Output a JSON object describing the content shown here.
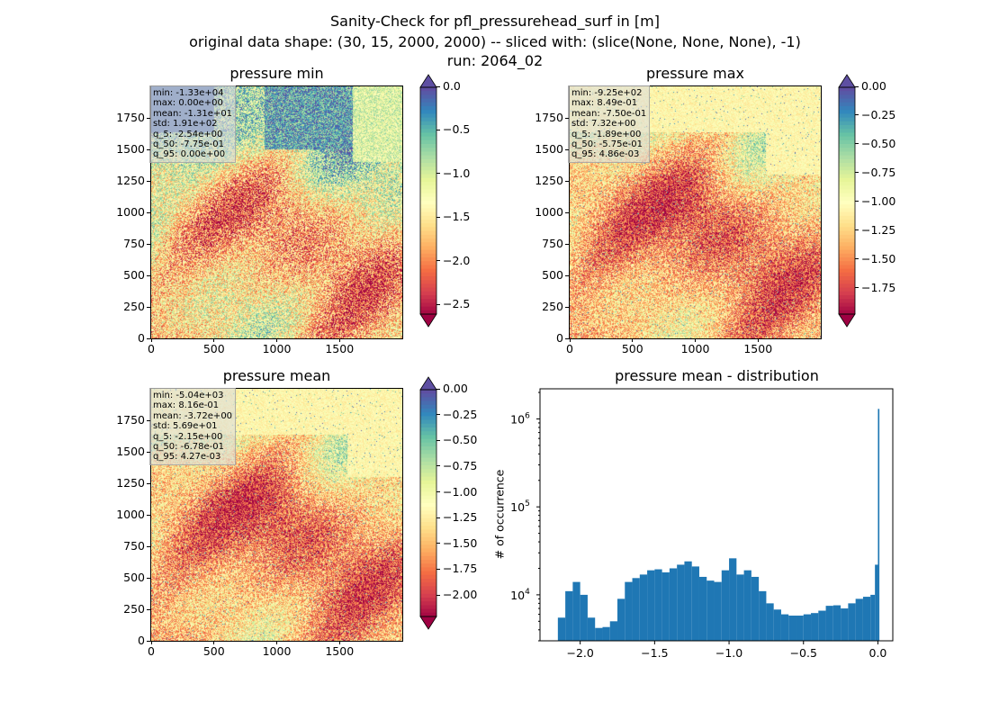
{
  "suptitle": {
    "line1": "Sanity-Check for pfl_pressurehead_surf in [m]",
    "line2": "original data shape: (30, 15, 2000, 2000) -- sliced with: (slice(None, None, None), -1)",
    "line3": "run: 2064_02"
  },
  "chart_data": [
    {
      "type": "heatmap",
      "title": "pressure min",
      "colormap": "Spectral",
      "extend": "both",
      "xticks": [
        "0",
        "500",
        "1000",
        "1500"
      ],
      "yticks": [
        "0",
        "250",
        "500",
        "750",
        "1000",
        "1250",
        "1500",
        "1750"
      ],
      "xlim": [
        0,
        2000
      ],
      "ylim": [
        0,
        2000
      ],
      "colorbar_ticks": [
        "0.0",
        "−0.5",
        "−1.0",
        "−1.5",
        "−2.0",
        "−2.5"
      ],
      "colorbar_range": [
        -2.6,
        0.0
      ],
      "colorbar_tick_values": [
        0.0,
        -0.5,
        -1.0,
        -1.5,
        -2.0,
        -2.5
      ],
      "stats": [
        "min: -1.33e+04",
        "max: 0.00e+00",
        "mean: -1.31e+01",
        "std: 1.91e+02",
        "q_5: -2.54e+00",
        "q_50: -7.75e-01",
        "q_95: 0.00e+00"
      ]
    },
    {
      "type": "heatmap",
      "title": "pressure max",
      "colormap": "Spectral",
      "extend": "both",
      "xticks": [
        "0",
        "500",
        "1000",
        "1500"
      ],
      "yticks": [
        "0",
        "250",
        "500",
        "750",
        "1000",
        "1250",
        "1500",
        "1750"
      ],
      "xlim": [
        0,
        2000
      ],
      "ylim": [
        0,
        2000
      ],
      "colorbar_ticks": [
        "0.00",
        "−0.25",
        "−0.50",
        "−0.75",
        "−1.00",
        "−1.25",
        "−1.50",
        "−1.75"
      ],
      "colorbar_range": [
        -1.97,
        0.0
      ],
      "colorbar_tick_values": [
        0.0,
        -0.25,
        -0.5,
        -0.75,
        -1.0,
        -1.25,
        -1.5,
        -1.75
      ],
      "stats": [
        "min: -9.25e+02",
        "max: 8.49e-01",
        "mean: -7.50e-01",
        "std: 7.32e+00",
        "q_5: -1.89e+00",
        "q_50: -5.75e-01",
        "q_95: 4.86e-03"
      ]
    },
    {
      "type": "heatmap",
      "title": "pressure mean",
      "colormap": "Spectral",
      "extend": "both",
      "xticks": [
        "0",
        "500",
        "1000",
        "1500"
      ],
      "yticks": [
        "0",
        "250",
        "500",
        "750",
        "1000",
        "1250",
        "1500",
        "1750"
      ],
      "xlim": [
        0,
        2000
      ],
      "ylim": [
        0,
        2000
      ],
      "colorbar_ticks": [
        "0.00",
        "−0.25",
        "−0.50",
        "−0.75",
        "−1.00",
        "−1.25",
        "−1.50",
        "−1.75",
        "−2.00"
      ],
      "colorbar_range": [
        -2.2,
        0.0
      ],
      "colorbar_tick_values": [
        0.0,
        -0.25,
        -0.5,
        -0.75,
        -1.0,
        -1.25,
        -1.5,
        -1.75,
        -2.0
      ],
      "stats": [
        "min: -5.04e+03",
        "max: 8.16e-01",
        "mean: -3.72e+00",
        "std: 5.69e+01",
        "q_5: -2.15e+00",
        "q_50: -6.78e-01",
        "q_95: 4.27e-03"
      ]
    },
    {
      "type": "bar",
      "title": "pressure mean - distribution",
      "ylabel": "# of occurrence",
      "yscale": "log",
      "xlim": [
        -2.27,
        0.1
      ],
      "ylim": [
        3000,
        2200000
      ],
      "xticks": [
        "−2.0",
        "−1.5",
        "−1.0",
        "−0.5",
        "0.0"
      ],
      "xtick_values": [
        -2.0,
        -1.5,
        -1.0,
        -0.5,
        0.0
      ],
      "ytick_values": [
        10000,
        100000,
        1000000
      ],
      "color": "#1f77b4",
      "x": [
        -2.15,
        -2.1,
        -2.05,
        -2.0,
        -1.95,
        -1.9,
        -1.85,
        -1.8,
        -1.75,
        -1.7,
        -1.65,
        -1.6,
        -1.55,
        -1.5,
        -1.45,
        -1.4,
        -1.35,
        -1.3,
        -1.25,
        -1.2,
        -1.15,
        -1.1,
        -1.05,
        -1.0,
        -0.95,
        -0.9,
        -0.85,
        -0.8,
        -0.75,
        -0.7,
        -0.65,
        -0.6,
        -0.55,
        -0.5,
        -0.45,
        -0.4,
        -0.35,
        -0.3,
        -0.25,
        -0.2,
        -0.15,
        -0.1,
        -0.05,
        -0.02,
        0.0
      ],
      "values": [
        5500,
        11000,
        14000,
        10000,
        5500,
        4200,
        4300,
        5000,
        9000,
        14000,
        15500,
        17000,
        19000,
        19500,
        18000,
        20000,
        22000,
        24000,
        21000,
        16000,
        14500,
        14000,
        19000,
        26000,
        17000,
        19000,
        16000,
        11000,
        8000,
        6800,
        6000,
        5800,
        5800,
        6000,
        6200,
        6600,
        7500,
        7600,
        7000,
        8000,
        9000,
        9500,
        10000,
        22000,
        1300000
      ]
    }
  ]
}
